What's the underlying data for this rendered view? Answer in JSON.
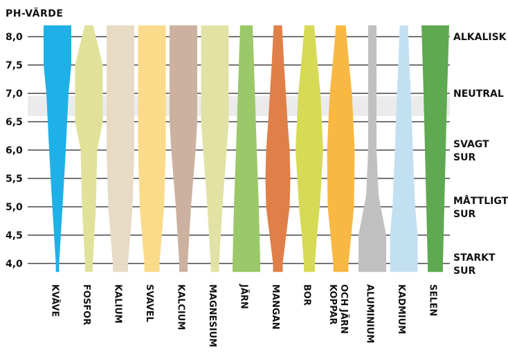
{
  "chart_data": {
    "type": "area",
    "title": "",
    "ylabel": "PH-VÄRDE",
    "xlabel": "",
    "ylim": [
      3.85,
      8.2
    ],
    "yticks": [
      {
        "label": "8,0",
        "value": 8.0
      },
      {
        "label": "7,5",
        "value": 7.5
      },
      {
        "label": "7,0",
        "value": 7.0
      },
      {
        "label": "6,5",
        "value": 6.5
      },
      {
        "label": "6,0",
        "value": 6.0
      },
      {
        "label": "5,5",
        "value": 5.5
      },
      {
        "label": "5,0",
        "value": 5.0
      },
      {
        "label": "4,5",
        "value": 4.5
      },
      {
        "label": "4,0",
        "value": 4.0
      }
    ],
    "neutral_band": [
      6.6,
      6.95
    ],
    "neutral_band_color": "#ebebeb",
    "zones": [
      {
        "lines": [
          "ALKALISK"
        ],
        "value": 8.0
      },
      {
        "lines": [
          "NEUTRAL"
        ],
        "value": 7.0
      },
      {
        "lines": [
          "SVAGT",
          "SUR"
        ],
        "value": 6.0
      },
      {
        "lines": [
          "MÅTTLIGT",
          "SUR"
        ],
        "value": 5.0
      },
      {
        "lines": [
          "STARKT",
          "SUR"
        ],
        "value": 4.0
      }
    ],
    "grid": true,
    "series": [
      {
        "name": "KVÄVE",
        "label_lines": [
          "KVÄVE"
        ],
        "color": "#1fb0e8",
        "profile": [
          [
            8.2,
            1.0
          ],
          [
            7.5,
            1.0
          ],
          [
            7.0,
            0.8
          ],
          [
            6.0,
            0.6
          ],
          [
            5.0,
            0.37
          ],
          [
            4.0,
            0.12
          ],
          [
            3.85,
            0.12
          ]
        ]
      },
      {
        "name": "FOSFOR",
        "label_lines": [
          "FOSFOR"
        ],
        "color": "#e1e19a",
        "profile": [
          [
            8.2,
            0.3
          ],
          [
            7.5,
            1.0
          ],
          [
            6.5,
            1.0
          ],
          [
            6.0,
            0.6
          ],
          [
            5.0,
            0.5
          ],
          [
            4.0,
            0.28
          ],
          [
            3.85,
            0.28
          ]
        ]
      },
      {
        "name": "KALIUM",
        "label_lines": [
          "KALIUM"
        ],
        "color": "#e7dbc6",
        "profile": [
          [
            8.2,
            1.0
          ],
          [
            6.0,
            1.0
          ],
          [
            5.0,
            0.88
          ],
          [
            4.0,
            0.55
          ],
          [
            3.85,
            0.55
          ]
        ]
      },
      {
        "name": "SVAVEL",
        "label_lines": [
          "SVAVEL"
        ],
        "color": "#fadb8a",
        "profile": [
          [
            8.2,
            1.0
          ],
          [
            6.0,
            1.0
          ],
          [
            5.0,
            0.88
          ],
          [
            4.0,
            0.55
          ],
          [
            3.85,
            0.55
          ]
        ]
      },
      {
        "name": "KALCIUM",
        "label_lines": [
          "KALCIUM"
        ],
        "color": "#cdb1a0",
        "profile": [
          [
            8.2,
            1.0
          ],
          [
            6.5,
            1.0
          ],
          [
            6.0,
            0.88
          ],
          [
            5.0,
            0.55
          ],
          [
            4.0,
            0.3
          ],
          [
            3.85,
            0.3
          ]
        ]
      },
      {
        "name": "MAGNESIUM",
        "label_lines": [
          "MAGNESIUM"
        ],
        "color": "#e2e2a5",
        "profile": [
          [
            8.2,
            1.0
          ],
          [
            6.5,
            1.0
          ],
          [
            6.0,
            0.85
          ],
          [
            5.0,
            0.55
          ],
          [
            4.0,
            0.3
          ],
          [
            3.85,
            0.3
          ]
        ]
      },
      {
        "name": "JÄRN",
        "label_lines": [
          "JÄRN"
        ],
        "color": "#9bc868",
        "profile": [
          [
            8.2,
            0.45
          ],
          [
            7.5,
            0.55
          ],
          [
            6.5,
            0.68
          ],
          [
            6.0,
            0.75
          ],
          [
            5.0,
            0.9
          ],
          [
            4.0,
            1.0
          ],
          [
            3.85,
            1.0
          ]
        ]
      },
      {
        "name": "MANGAN",
        "label_lines": [
          "MANGAN"
        ],
        "color": "#e07f48",
        "profile": [
          [
            8.2,
            0.3
          ],
          [
            7.5,
            0.45
          ],
          [
            6.5,
            0.7
          ],
          [
            6.0,
            0.85
          ],
          [
            5.5,
            0.9
          ],
          [
            5.0,
            0.85
          ],
          [
            4.5,
            0.6
          ],
          [
            4.0,
            0.35
          ],
          [
            3.85,
            0.35
          ]
        ]
      },
      {
        "name": "BOR",
        "label_lines": [
          "BOR"
        ],
        "color": "#d6da55",
        "profile": [
          [
            8.2,
            0.35
          ],
          [
            7.5,
            0.6
          ],
          [
            7.0,
            0.8
          ],
          [
            6.0,
            1.0
          ],
          [
            5.0,
            0.75
          ],
          [
            4.5,
            0.55
          ],
          [
            4.0,
            0.4
          ],
          [
            3.85,
            0.4
          ]
        ]
      },
      {
        "name": "KOPPAR OCH JÄRN",
        "label_lines": [
          "KOPPAR",
          "OCH JÄRN"
        ],
        "color": "#f8b843",
        "profile": [
          [
            8.2,
            0.35
          ],
          [
            7.5,
            0.6
          ],
          [
            7.0,
            0.8
          ],
          [
            6.0,
            1.0
          ],
          [
            5.0,
            0.95
          ],
          [
            4.5,
            0.75
          ],
          [
            4.0,
            0.55
          ],
          [
            3.85,
            0.55
          ]
        ]
      },
      {
        "name": "ALUMINIUM",
        "label_lines": [
          "ALUMINIUM"
        ],
        "color": "#c0c0c0",
        "profile": [
          [
            8.2,
            0.3
          ],
          [
            7.0,
            0.3
          ],
          [
            6.0,
            0.3
          ],
          [
            5.2,
            0.45
          ],
          [
            4.5,
            1.0
          ],
          [
            4.0,
            1.0
          ],
          [
            3.85,
            1.0
          ]
        ]
      },
      {
        "name": "KADMIUM",
        "label_lines": [
          "KADMIUM"
        ],
        "color": "#c3e0f3",
        "profile": [
          [
            8.2,
            0.3
          ],
          [
            7.5,
            0.4
          ],
          [
            7.0,
            0.5
          ],
          [
            6.0,
            0.65
          ],
          [
            5.0,
            0.82
          ],
          [
            4.5,
            1.0
          ],
          [
            4.0,
            1.0
          ],
          [
            3.85,
            1.0
          ]
        ]
      },
      {
        "name": "SELEN",
        "label_lines": [
          "SELEN"
        ],
        "color": "#5fa952",
        "profile": [
          [
            8.2,
            1.0
          ],
          [
            7.0,
            0.85
          ],
          [
            6.0,
            0.75
          ],
          [
            5.0,
            0.65
          ],
          [
            4.0,
            0.55
          ],
          [
            3.85,
            0.55
          ]
        ]
      }
    ]
  }
}
